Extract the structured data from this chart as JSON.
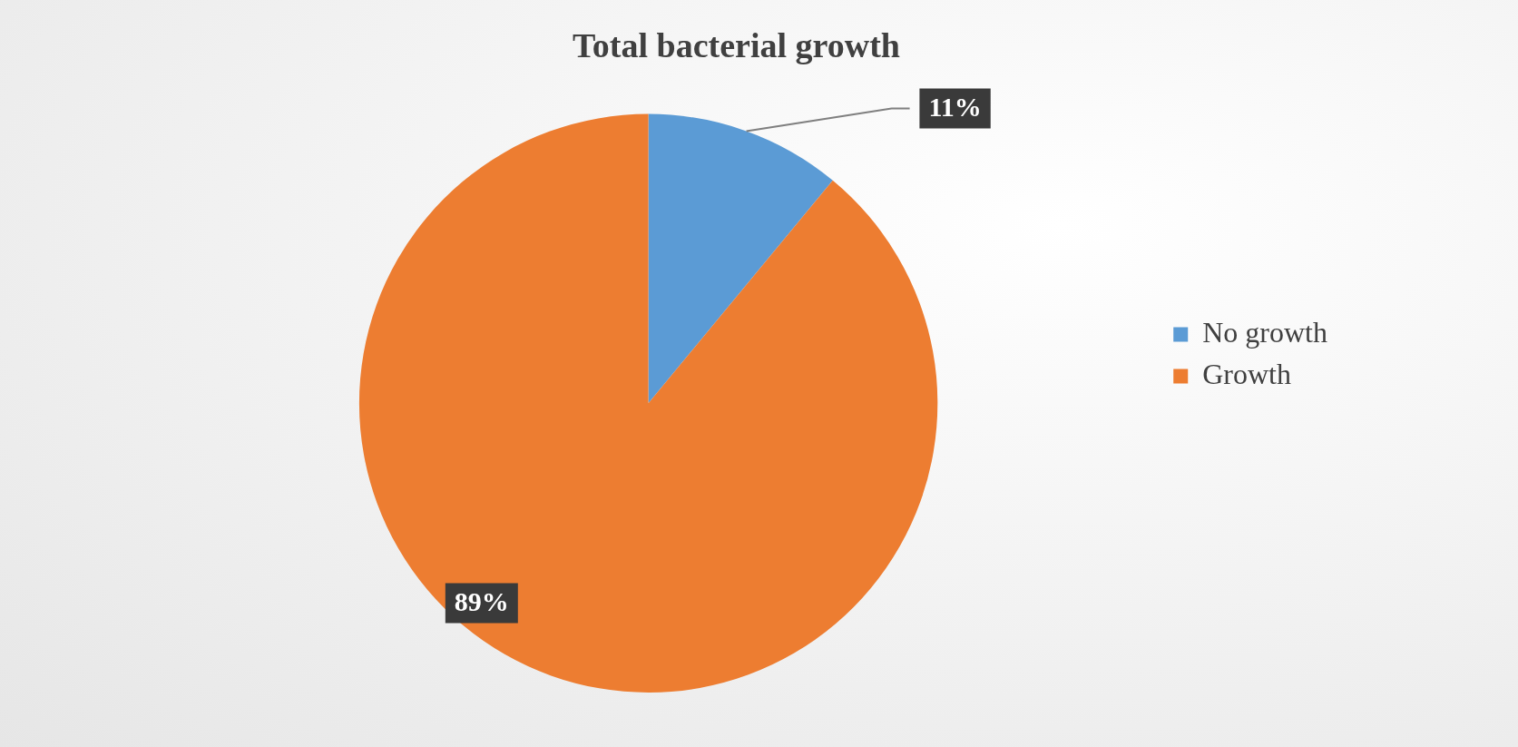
{
  "chart_data": {
    "type": "pie",
    "title": "Total bacterial growth",
    "categories": [
      "No growth",
      "Growth"
    ],
    "values": [
      11,
      89
    ],
    "colors": [
      "#5b9bd5",
      "#ed7d31"
    ],
    "value_labels": [
      "11%",
      "89%"
    ],
    "legend": "right"
  }
}
